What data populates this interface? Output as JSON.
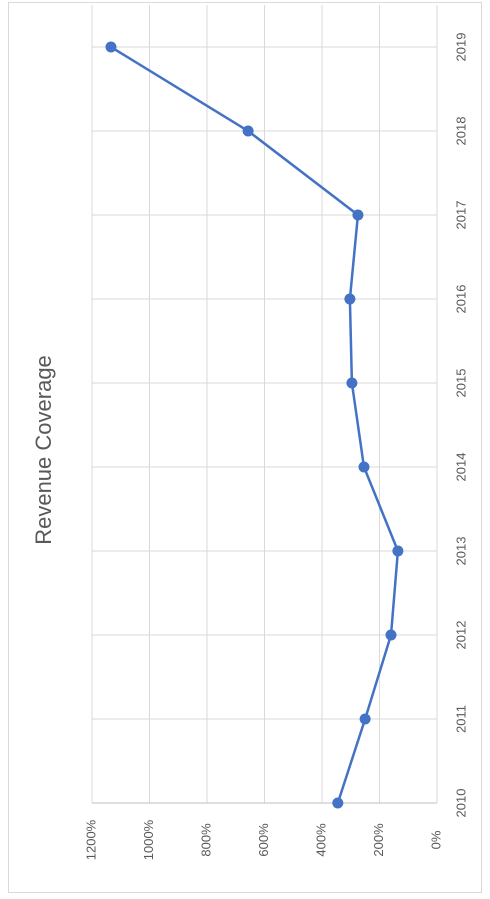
{
  "chart_data": {
    "type": "line",
    "title": "Revenue Coverage",
    "categories": [
      "2010",
      "2011",
      "2012",
      "2013",
      "2014",
      "2015",
      "2016",
      "2017",
      "2018",
      "2019"
    ],
    "series": [
      {
        "name": "Revenue Coverage",
        "color": "#4472c4",
        "values": [
          345,
          250,
          160,
          136,
          254,
          296,
          303,
          275,
          657,
          1134
        ]
      }
    ],
    "ylim": [
      0,
      1200
    ],
    "yticks": [
      {
        "value": 0,
        "label": "0%"
      },
      {
        "value": 200,
        "label": "200%"
      },
      {
        "value": 400,
        "label": "400%"
      },
      {
        "value": 600,
        "label": "600%"
      },
      {
        "value": 800,
        "label": "800%"
      },
      {
        "value": 1000,
        "label": "1000%"
      },
      {
        "value": 1200,
        "label": "1200%"
      }
    ],
    "grid": true
  }
}
